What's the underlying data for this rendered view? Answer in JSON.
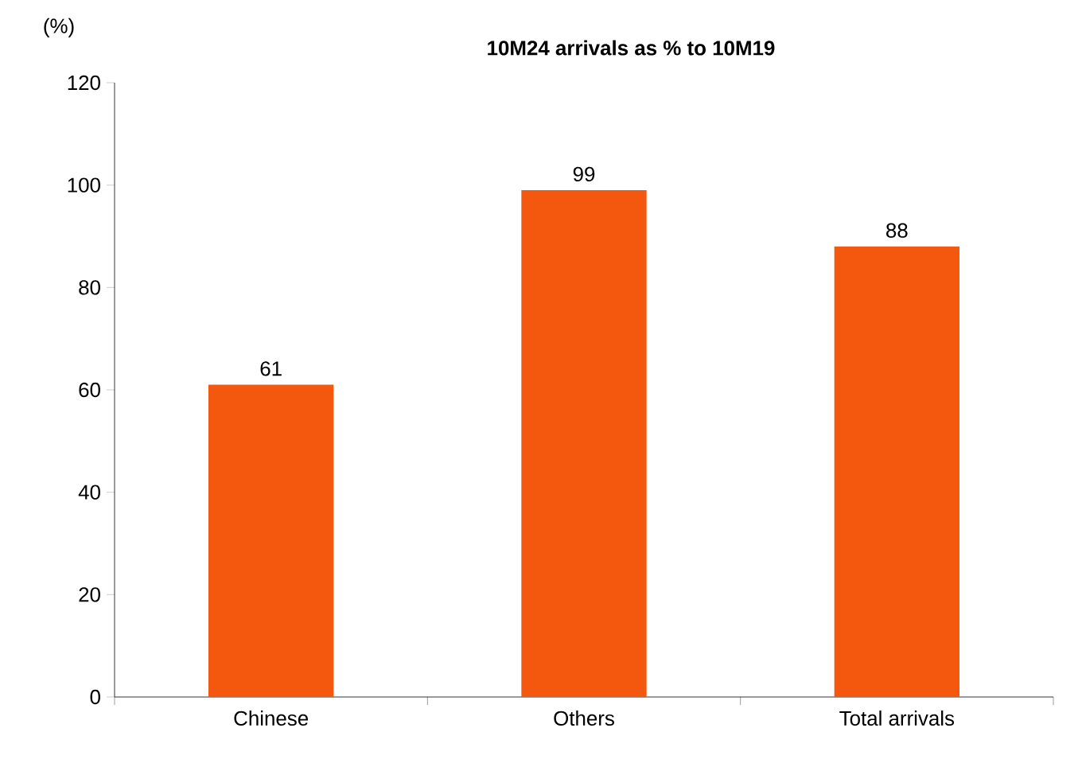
{
  "chart_data": {
    "type": "bar",
    "title": "**10M24 arrivals as % to 10M19**",
    "ylabel": "(%)",
    "categories": [
      "Chinese",
      "Others",
      "Total arrivals"
    ],
    "values": [
      61,
      99,
      88
    ],
    "color": "#f4580f",
    "ylim": [
      0,
      120
    ],
    "yticks": [
      0,
      20,
      40,
      60,
      80,
      100,
      120
    ],
    "data_labels": true
  }
}
